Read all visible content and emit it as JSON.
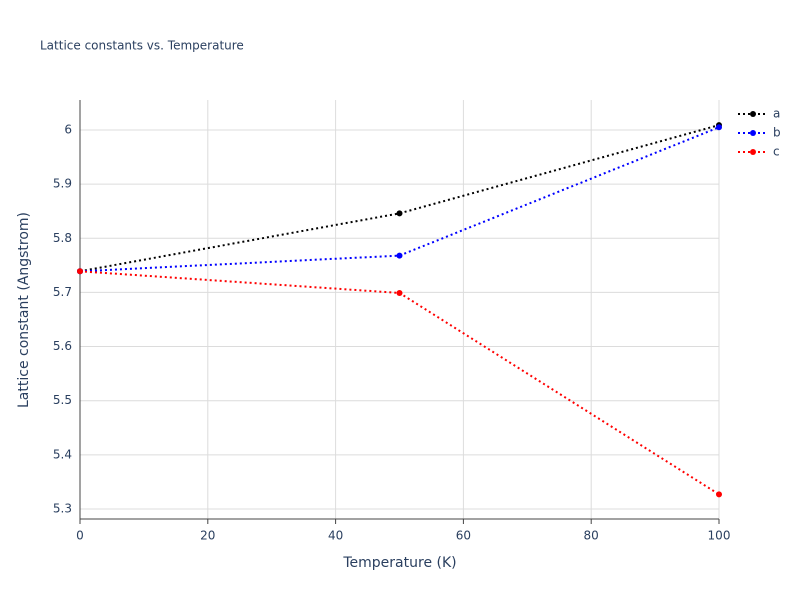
{
  "chart_data": {
    "type": "line",
    "title": "Lattice constants vs. Temperature",
    "x_label": "Temperature (K)",
    "y_label": "Lattice constant (Angstrom)",
    "x": [
      0,
      50,
      100
    ],
    "series": [
      {
        "name": "a",
        "color": "#000000",
        "values": [
          5.739,
          5.846,
          6.009
        ]
      },
      {
        "name": "b",
        "color": "#0000ff",
        "values": [
          5.739,
          5.768,
          6.005
        ]
      },
      {
        "name": "c",
        "color": "#ff0000",
        "values": [
          5.739,
          5.699,
          5.327
        ]
      }
    ],
    "xlim": [
      0,
      100
    ],
    "xticks": [
      0,
      20,
      40,
      60,
      80,
      100
    ],
    "ylim": [
      5.2815,
      6.0554
    ],
    "yticks": [
      5.3,
      5.4,
      5.5,
      5.6,
      5.7,
      5.8,
      5.9,
      6
    ],
    "grid": true,
    "legend": "top-right",
    "line_style": "dotted"
  }
}
